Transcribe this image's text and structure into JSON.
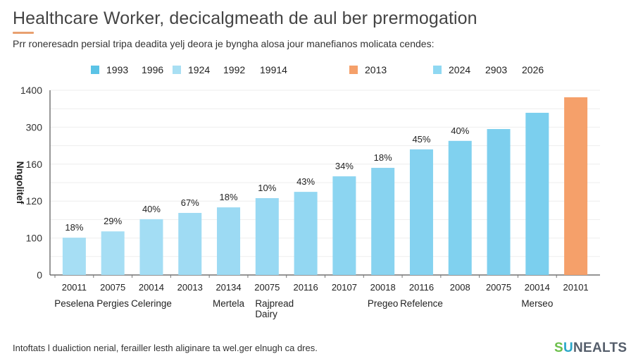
{
  "header": {
    "title": "Healthcare Worker, decicalgmeath de aul ber prermogation",
    "subtitle": "Prr roneresadn persial tripa deadita yelj deora je byngha alosa jour manefianos molicata cendes:",
    "accent_color": "#e8a070"
  },
  "legend": {
    "items": [
      {
        "label": "1993",
        "color": "#5bc3e6",
        "swatch": true
      },
      {
        "label": "1996",
        "color": null,
        "swatch": false
      },
      {
        "label": "1924",
        "color": "#a8dff3",
        "swatch": true
      },
      {
        "label": "1992",
        "color": null,
        "swatch": false
      },
      {
        "label": "19914",
        "color": null,
        "swatch": false
      },
      {
        "label": "2013",
        "color": "#f5a06a",
        "swatch": true
      },
      {
        "label": "2024",
        "color": "#8fd8f2",
        "swatch": true
      },
      {
        "label": "2903",
        "color": null,
        "swatch": false
      },
      {
        "label": "2026",
        "color": null,
        "swatch": false
      }
    ]
  },
  "chart_data": {
    "type": "bar",
    "title": "Healthcare Worker, decicalgmeath de aul ber prermogation",
    "xlabel": "",
    "ylabel": "Nngolitef",
    "y_ticks": [
      "0",
      "100",
      "120",
      "160",
      "300",
      "1400"
    ],
    "y_axis_note": "tick labels are evenly spaced (non-linear); bar values are expressed in tick-index units 0-5",
    "ylim": [
      0,
      5
    ],
    "grid": true,
    "legend_position": "top",
    "categories": [
      "20011",
      "20075",
      "20014",
      "20013",
      "20134",
      "20075",
      "20116",
      "20107",
      "20018",
      "20116",
      "2008",
      "20075",
      "20014",
      "20101"
    ],
    "group_labels": [
      "Peselena",
      "Pergies",
      "Celeringe",
      "",
      "Mertela",
      "Rajpread Dairy",
      "",
      "",
      "Pregeo",
      "Refelence",
      "",
      "",
      "Merseo",
      ""
    ],
    "values": [
      1.01,
      1.18,
      1.51,
      1.68,
      1.83,
      2.08,
      2.25,
      2.67,
      2.9,
      3.4,
      3.63,
      3.95,
      4.39,
      4.81
    ],
    "data_labels": [
      "18%",
      "29%",
      "40%",
      "67%",
      "18%",
      "10%",
      "43%",
      "34%",
      "18%",
      "45%",
      "40%",
      "",
      "",
      ""
    ],
    "bar_colors": [
      "#a6def4",
      "#a6def4",
      "#a3ddf4",
      "#9fdbf3",
      "#9cdaf3",
      "#98d9f3",
      "#93d7f2",
      "#8cd5f1",
      "#88d3f0",
      "#84d2f0",
      "#80d1ef",
      "#7dcfee",
      "#7bcfee",
      "#f5a06a"
    ]
  },
  "footer": {
    "note": "Intoftats l dualiction nerial, ferailler lesth aliginare ta wel.ger elnugh ca dres.",
    "logo_s": "S",
    "logo_u": "U",
    "logo_rest": "NEALTS"
  }
}
